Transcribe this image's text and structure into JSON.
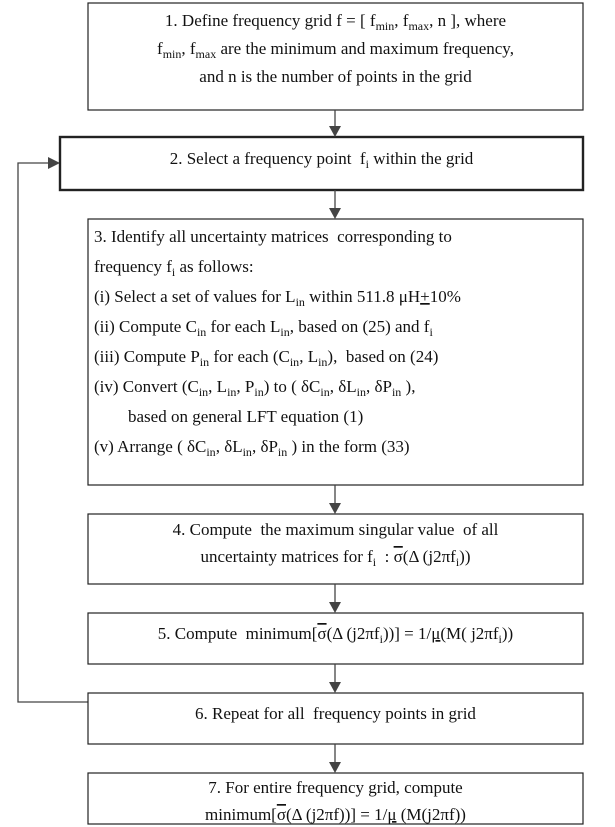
{
  "boxes": [
    {
      "lines": [
        [
          "1. Define frequency grid f = [ f",
          {
            "sub": "min"
          },
          ", f",
          {
            "sub": "max"
          },
          ", n ], where"
        ],
        [
          "f",
          {
            "sub": "min"
          },
          ", f",
          {
            "sub": "max"
          },
          " are the minimum and maximum frequency,"
        ],
        [
          "and n is the number of points in the grid"
        ]
      ]
    },
    {
      "lines": [
        [
          "2. Select a frequency point  f",
          {
            "sub": "i"
          },
          " within the grid"
        ]
      ]
    },
    {
      "lines": [
        [
          "3. Identify all uncertainty matrices  corresponding to"
        ],
        [
          "frequency f",
          {
            "sub": "i"
          },
          " as follows:"
        ],
        [
          "(i) Select a set of values for L",
          {
            "sub": "in"
          },
          " within 511.8 μH",
          {
            "under": "+"
          },
          "10%"
        ],
        [
          "(ii) Compute C",
          {
            "sub": "in"
          },
          " for each L",
          {
            "sub": "in"
          },
          ", based on (25) and f",
          {
            "sub": "i"
          }
        ],
        [
          "(iii) Compute P",
          {
            "sub": "in"
          },
          " for each (C",
          {
            "sub": "in"
          },
          ", L",
          {
            "sub": "in"
          },
          "),  based on (24)"
        ],
        [
          "(iv) Convert (C",
          {
            "sub": "in"
          },
          ", L",
          {
            "sub": "in"
          },
          ", P",
          {
            "sub": "in"
          },
          ") to ( δC",
          {
            "sub": "in"
          },
          ", δL",
          {
            "sub": "in"
          },
          ", δP",
          {
            "sub": "in"
          },
          " ),"
        ],
        [
          "based on general LFT equation (1)"
        ],
        [
          "(v) Arrange ( δC",
          {
            "sub": "in"
          },
          ", δL",
          {
            "sub": "in"
          },
          ", δP",
          {
            "sub": "in"
          },
          " ) in the form (33)"
        ]
      ]
    },
    {
      "lines": [
        [
          "4. Compute  the maximum singular value  of all"
        ],
        [
          "uncertainty matrices for f",
          {
            "sub": "i"
          },
          "  : ",
          {
            "over": "σ"
          },
          "(Δ (j2πf",
          {
            "sub": "i"
          },
          "))"
        ]
      ]
    },
    {
      "lines": [
        [
          "5. Compute  minimum[",
          {
            "over": "σ"
          },
          "(Δ (j2πf",
          {
            "sub": "i"
          },
          "))] = 1/",
          {
            "under": "μ"
          },
          "(M( j2πf",
          {
            "sub": "i"
          },
          "))"
        ]
      ]
    },
    {
      "lines": [
        [
          "6. Repeat for all  frequency points in grid"
        ]
      ]
    },
    {
      "lines": [
        [
          "7. For entire frequency grid, compute"
        ],
        [
          "minimum[",
          {
            "over": "σ"
          },
          "(Δ (j2πf))] = 1/",
          {
            "under": "μ"
          },
          " (M(j2πf))"
        ]
      ]
    }
  ]
}
